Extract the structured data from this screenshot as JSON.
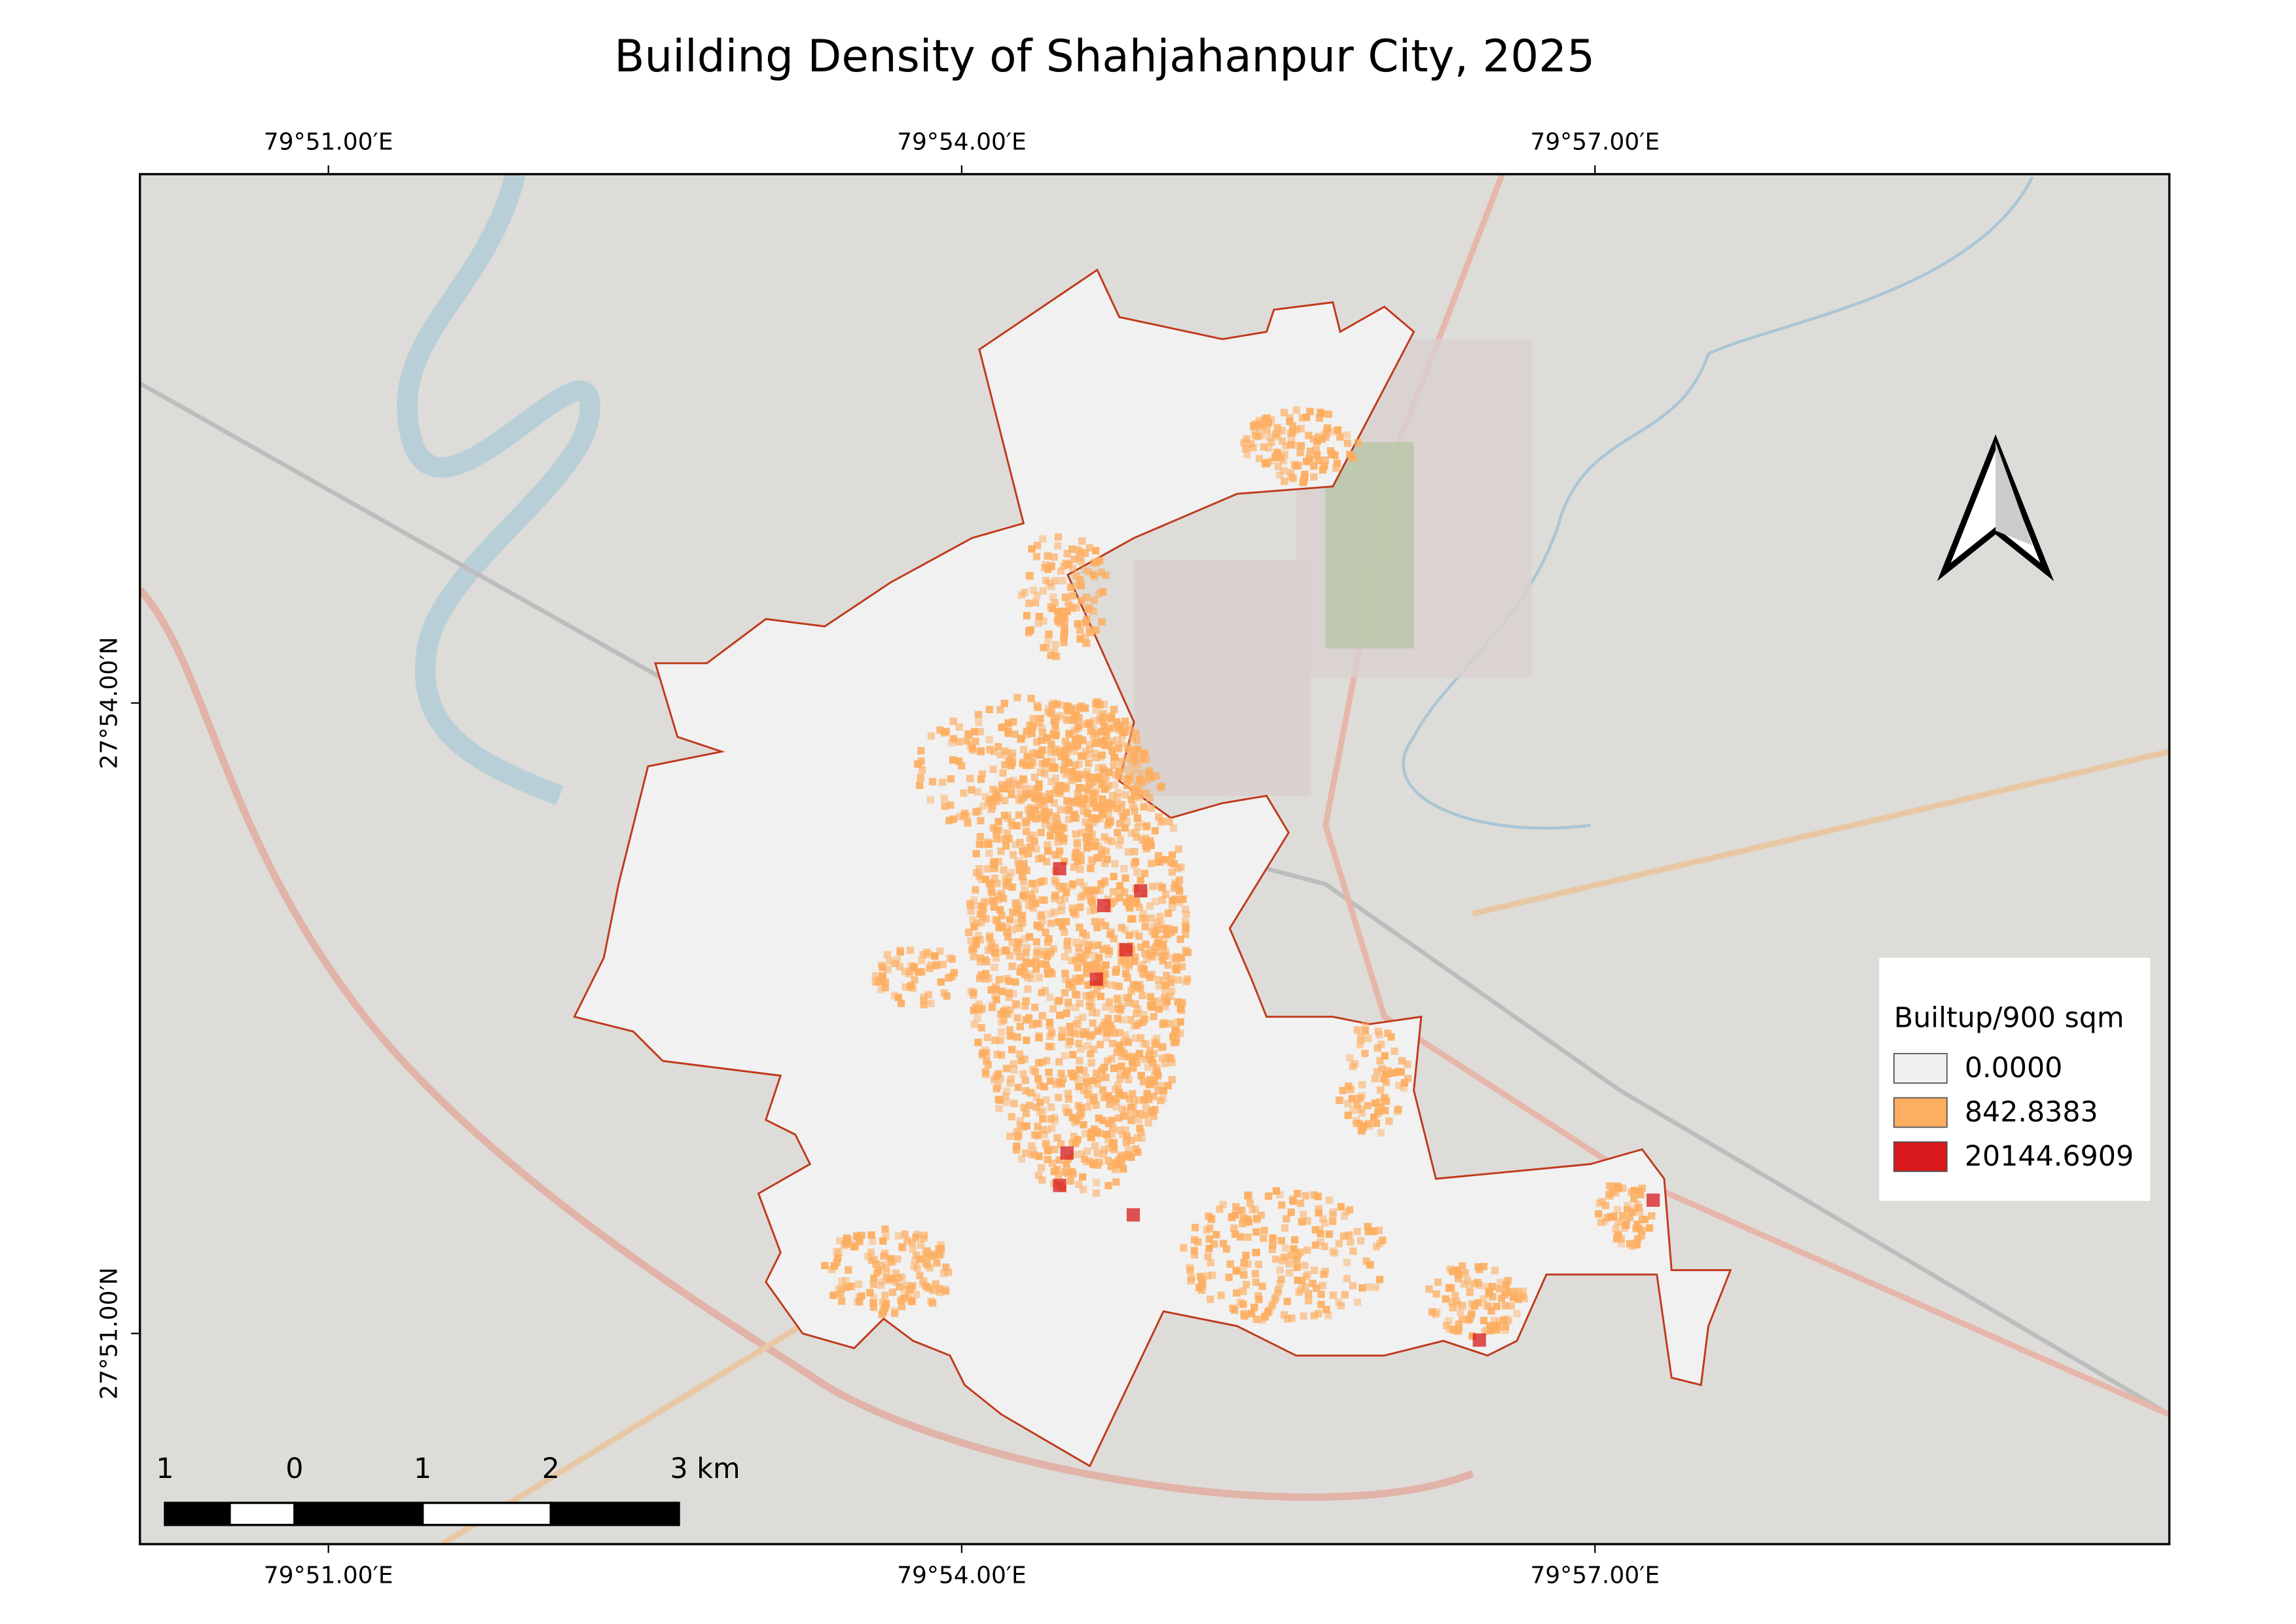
{
  "map": {
    "title": "Building Density of Shahjahanpur City, 2025",
    "graticule": {
      "top": [
        "79°51.00′E",
        "79°54.00′E",
        "79°57.00′E"
      ],
      "bottom": [
        "79°51.00′E",
        "79°54.00′E",
        "79°57.00′E"
      ],
      "left": [
        "27°54.00′N",
        "27°51.00′N"
      ]
    },
    "legend": {
      "title": "Builtup/900 sqm",
      "entries": [
        {
          "label": "0.0000",
          "color": "#f0f0f0"
        },
        {
          "label": "842.8383",
          "color": "#fdae61"
        },
        {
          "label": "20144.6909",
          "color": "#d7191c"
        }
      ]
    },
    "scale_bar": {
      "labels": [
        "1",
        "0",
        "1",
        "2",
        "3 km"
      ]
    }
  }
}
